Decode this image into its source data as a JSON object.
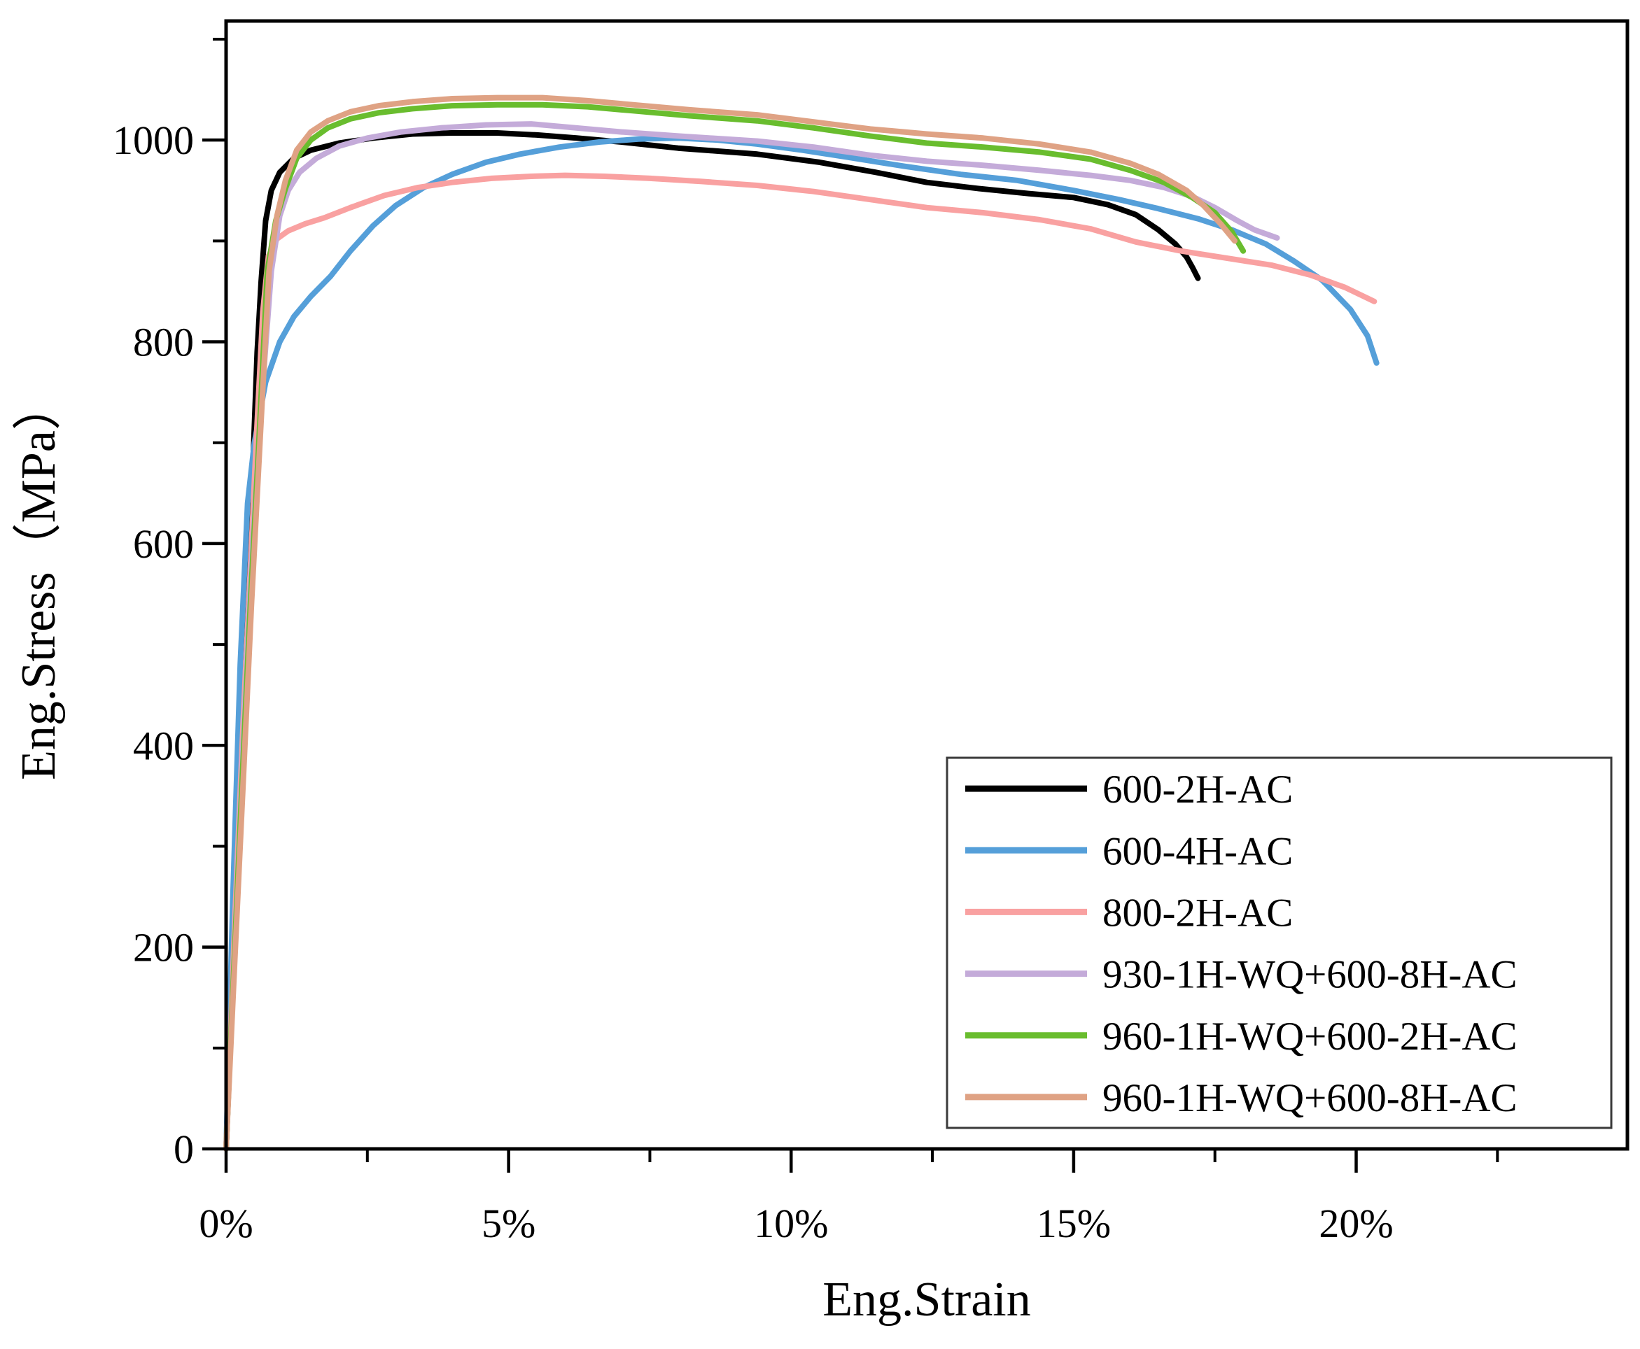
{
  "figure": {
    "background": "#ffffff",
    "plot_box_color": "#000000",
    "axes": {
      "x": {
        "label": "Eng.Strain",
        "range_pct": [
          0,
          24.8
        ],
        "major_ticks_pct": [
          0,
          5,
          10,
          15,
          20
        ],
        "minor_ticks_pct": [
          2.5,
          7.5,
          12.5,
          17.5,
          22.5
        ],
        "tick_labels": [
          "0%",
          "5%",
          "10%",
          "15%",
          "20%"
        ]
      },
      "y": {
        "label": "Eng.Stress（MPa）",
        "range_mpa": [
          0,
          1118
        ],
        "major_ticks_mpa": [
          0,
          200,
          400,
          600,
          800,
          1000
        ],
        "minor_ticks_mpa": [
          100,
          300,
          500,
          700,
          900,
          1100
        ],
        "tick_labels": [
          "0",
          "200",
          "400",
          "600",
          "800",
          "1000"
        ]
      }
    },
    "legend": {
      "position": "lower-right",
      "border_color": "#3a3a3a",
      "background": "#ffffff"
    }
  },
  "chart_data": {
    "type": "line",
    "title": "",
    "xlabel": "Eng.Strain",
    "ylabel": "Eng.Stress（MPa）",
    "xlim": [
      0,
      24.8
    ],
    "ylim": [
      0,
      1118
    ],
    "x_unit": "engineering strain, %",
    "y_unit": "engineering stress, MPa",
    "grid": false,
    "legend_position": "lower right",
    "series": [
      {
        "name": "600-2H-AC",
        "color": "#000000",
        "points": [
          [
            0,
            0
          ],
          [
            0.15,
            200
          ],
          [
            0.3,
            400
          ],
          [
            0.45,
            640
          ],
          [
            0.55,
            790
          ],
          [
            0.62,
            860
          ],
          [
            0.7,
            920
          ],
          [
            0.8,
            950
          ],
          [
            0.95,
            968
          ],
          [
            1.2,
            982
          ],
          [
            1.5,
            990
          ],
          [
            2.0,
            997
          ],
          [
            2.6,
            1002
          ],
          [
            3.3,
            1006
          ],
          [
            4.0,
            1007
          ],
          [
            4.8,
            1007
          ],
          [
            5.5,
            1005
          ],
          [
            6.2,
            1002
          ],
          [
            7.0,
            998
          ],
          [
            8.0,
            992
          ],
          [
            9.4,
            986
          ],
          [
            10.5,
            978
          ],
          [
            11.5,
            968
          ],
          [
            12.4,
            958
          ],
          [
            13.3,
            952
          ],
          [
            14.2,
            947
          ],
          [
            15.0,
            943
          ],
          [
            15.6,
            936
          ],
          [
            16.1,
            926
          ],
          [
            16.5,
            911
          ],
          [
            16.8,
            897
          ],
          [
            17.0,
            884
          ],
          [
            17.1,
            874
          ],
          [
            17.2,
            863
          ]
        ]
      },
      {
        "name": "600-4H-AC",
        "color": "#559fd9",
        "points": [
          [
            0,
            0
          ],
          [
            0.12,
            250
          ],
          [
            0.25,
            480
          ],
          [
            0.38,
            640
          ],
          [
            0.5,
            700
          ],
          [
            0.7,
            760
          ],
          [
            0.95,
            800
          ],
          [
            1.2,
            825
          ],
          [
            1.5,
            845
          ],
          [
            1.85,
            865
          ],
          [
            2.2,
            890
          ],
          [
            2.6,
            915
          ],
          [
            3.0,
            935
          ],
          [
            3.5,
            953
          ],
          [
            4.0,
            966
          ],
          [
            4.6,
            978
          ],
          [
            5.2,
            986
          ],
          [
            5.9,
            993
          ],
          [
            6.6,
            998
          ],
          [
            7.3,
            1001
          ],
          [
            8.0,
            1002
          ],
          [
            8.7,
            1000
          ],
          [
            9.4,
            996
          ],
          [
            10.2,
            990
          ],
          [
            11.0,
            983
          ],
          [
            12.0,
            974
          ],
          [
            13.0,
            966
          ],
          [
            14.0,
            960
          ],
          [
            15.0,
            950
          ],
          [
            15.8,
            941
          ],
          [
            16.5,
            932
          ],
          [
            17.2,
            922
          ],
          [
            17.8,
            911
          ],
          [
            18.4,
            897
          ],
          [
            18.9,
            880
          ],
          [
            19.4,
            861
          ],
          [
            19.9,
            832
          ],
          [
            20.2,
            806
          ],
          [
            20.36,
            779
          ]
        ]
      },
      {
        "name": "800-2H-AC",
        "color": "#f9a1a1",
        "points": [
          [
            0,
            0
          ],
          [
            0.15,
            220
          ],
          [
            0.3,
            420
          ],
          [
            0.45,
            600
          ],
          [
            0.55,
            720
          ],
          [
            0.65,
            830
          ],
          [
            0.75,
            885
          ],
          [
            0.9,
            902
          ],
          [
            1.1,
            910
          ],
          [
            1.4,
            917
          ],
          [
            1.74,
            923
          ],
          [
            2.2,
            933
          ],
          [
            2.8,
            945
          ],
          [
            3.4,
            953
          ],
          [
            4.0,
            958
          ],
          [
            4.7,
            962
          ],
          [
            5.4,
            964
          ],
          [
            6.0,
            965
          ],
          [
            6.7,
            964
          ],
          [
            7.5,
            962
          ],
          [
            8.4,
            959
          ],
          [
            9.4,
            955
          ],
          [
            10.4,
            949
          ],
          [
            11.4,
            941
          ],
          [
            12.4,
            933
          ],
          [
            13.4,
            928
          ],
          [
            14.4,
            921
          ],
          [
            15.3,
            912
          ],
          [
            16.1,
            899
          ],
          [
            16.9,
            890
          ],
          [
            17.7,
            883
          ],
          [
            18.5,
            876
          ],
          [
            19.2,
            866
          ],
          [
            19.8,
            854
          ],
          [
            20.32,
            840
          ]
        ]
      },
      {
        "name": "930-1H-WQ+600-8H-AC",
        "color": "#c4abd9",
        "points": [
          [
            0,
            0
          ],
          [
            0.15,
            200
          ],
          [
            0.3,
            400
          ],
          [
            0.45,
            580
          ],
          [
            0.6,
            720
          ],
          [
            0.8,
            870
          ],
          [
            0.95,
            925
          ],
          [
            1.1,
            950
          ],
          [
            1.3,
            968
          ],
          [
            1.6,
            982
          ],
          [
            2.0,
            994
          ],
          [
            2.5,
            1002
          ],
          [
            3.1,
            1008
          ],
          [
            3.8,
            1012
          ],
          [
            4.6,
            1015
          ],
          [
            5.4,
            1016
          ],
          [
            6.2,
            1012
          ],
          [
            7.0,
            1008
          ],
          [
            8.0,
            1004
          ],
          [
            9.4,
            999
          ],
          [
            10.4,
            993
          ],
          [
            11.4,
            985
          ],
          [
            12.4,
            979
          ],
          [
            13.4,
            975
          ],
          [
            14.4,
            970
          ],
          [
            15.3,
            965
          ],
          [
            16.0,
            960
          ],
          [
            16.6,
            953
          ],
          [
            17.1,
            944
          ],
          [
            17.5,
            933
          ],
          [
            17.9,
            920
          ],
          [
            18.2,
            911
          ],
          [
            18.45,
            906
          ],
          [
            18.6,
            903
          ]
        ]
      },
      {
        "name": "960-1H-WQ+600-2H-AC",
        "color": "#69bd2e",
        "points": [
          [
            0,
            0
          ],
          [
            0.13,
            170
          ],
          [
            0.28,
            360
          ],
          [
            0.43,
            540
          ],
          [
            0.58,
            700
          ],
          [
            0.73,
            870
          ],
          [
            0.88,
            920
          ],
          [
            1.05,
            952
          ],
          [
            1.25,
            982
          ],
          [
            1.5,
            1000
          ],
          [
            1.8,
            1012
          ],
          [
            2.2,
            1021
          ],
          [
            2.7,
            1027
          ],
          [
            3.3,
            1031
          ],
          [
            4.0,
            1034
          ],
          [
            4.8,
            1035
          ],
          [
            5.6,
            1035
          ],
          [
            6.4,
            1033
          ],
          [
            7.2,
            1029
          ],
          [
            8.2,
            1024
          ],
          [
            9.4,
            1019
          ],
          [
            10.4,
            1012
          ],
          [
            11.4,
            1004
          ],
          [
            12.4,
            997
          ],
          [
            13.4,
            993
          ],
          [
            14.4,
            988
          ],
          [
            15.3,
            981
          ],
          [
            16.0,
            970
          ],
          [
            16.6,
            958
          ],
          [
            17.1,
            943
          ],
          [
            17.5,
            928
          ],
          [
            17.8,
            909
          ],
          [
            18.0,
            890
          ]
        ]
      },
      {
        "name": "960-1H-WQ+600-8H-AC",
        "color": "#dfa284",
        "points": [
          [
            0,
            0
          ],
          [
            0.14,
            170
          ],
          [
            0.3,
            360
          ],
          [
            0.45,
            540
          ],
          [
            0.6,
            700
          ],
          [
            0.76,
            870
          ],
          [
            0.9,
            925
          ],
          [
            1.05,
            960
          ],
          [
            1.25,
            990
          ],
          [
            1.5,
            1008
          ],
          [
            1.8,
            1019
          ],
          [
            2.2,
            1028
          ],
          [
            2.7,
            1034
          ],
          [
            3.3,
            1038
          ],
          [
            4.0,
            1041
          ],
          [
            4.8,
            1042
          ],
          [
            5.6,
            1042
          ],
          [
            6.4,
            1039
          ],
          [
            7.2,
            1035
          ],
          [
            8.2,
            1030
          ],
          [
            9.4,
            1025
          ],
          [
            10.4,
            1018
          ],
          [
            11.4,
            1011
          ],
          [
            12.4,
            1006
          ],
          [
            13.4,
            1002
          ],
          [
            14.4,
            996
          ],
          [
            15.3,
            988
          ],
          [
            16.0,
            977
          ],
          [
            16.5,
            966
          ],
          [
            17.0,
            950
          ],
          [
            17.3,
            935
          ],
          [
            17.6,
            917
          ],
          [
            17.85,
            900
          ]
        ]
      }
    ]
  }
}
